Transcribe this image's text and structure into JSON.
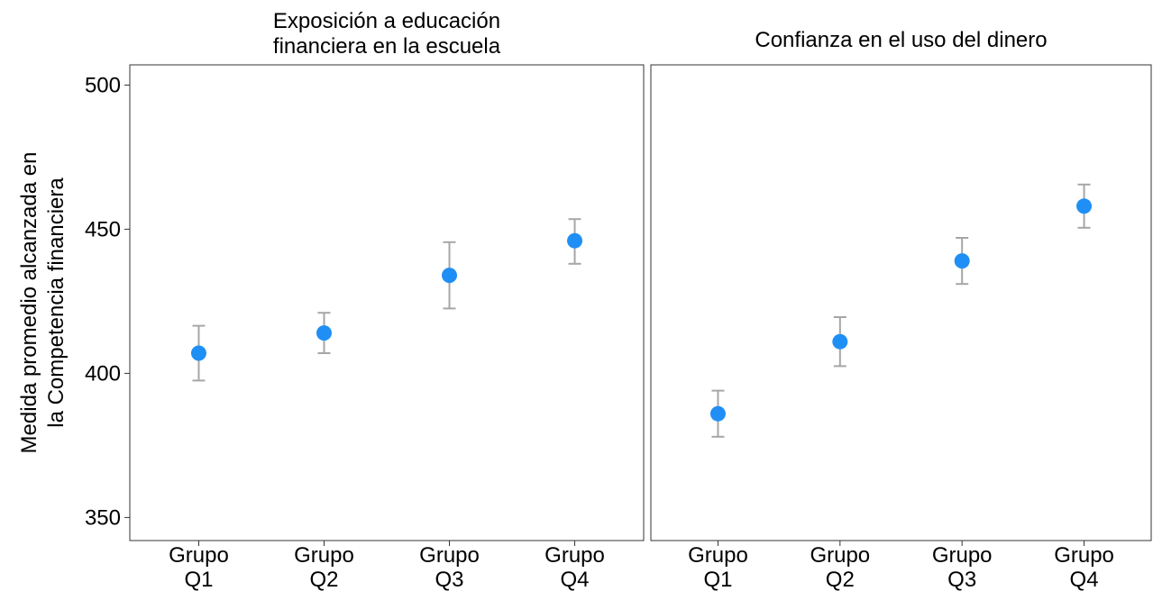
{
  "chart_data": {
    "type": "scatter",
    "ylabel_lines": [
      "Medida promedio alcanzada en",
      "la Competencia financiera"
    ],
    "ylim": [
      342,
      507
    ],
    "yticks": [
      350,
      400,
      450,
      500
    ],
    "point_color": "#1f8ff5",
    "errorbar_color": "#a6a6a6",
    "panels": [
      {
        "title_lines": [
          "Exposición a educación",
          "financiera en la escuela"
        ],
        "categories": [
          [
            "Grupo",
            "Q1"
          ],
          [
            "Grupo",
            "Q2"
          ],
          [
            "Grupo",
            "Q3"
          ],
          [
            "Grupo",
            "Q4"
          ]
        ],
        "values": [
          407,
          414,
          434,
          446
        ],
        "lower": [
          397.5,
          407,
          422.5,
          438
        ],
        "upper": [
          416.5,
          421,
          445.5,
          453.5
        ]
      },
      {
        "title_lines": [
          "Confianza en el uso del dinero"
        ],
        "categories": [
          [
            "Grupo",
            "Q1"
          ],
          [
            "Grupo",
            "Q2"
          ],
          [
            "Grupo",
            "Q3"
          ],
          [
            "Grupo",
            "Q4"
          ]
        ],
        "values": [
          386,
          411,
          439,
          458
        ],
        "lower": [
          378,
          402.5,
          431,
          450.5
        ],
        "upper": [
          394,
          419.5,
          447,
          465.5
        ]
      }
    ]
  }
}
